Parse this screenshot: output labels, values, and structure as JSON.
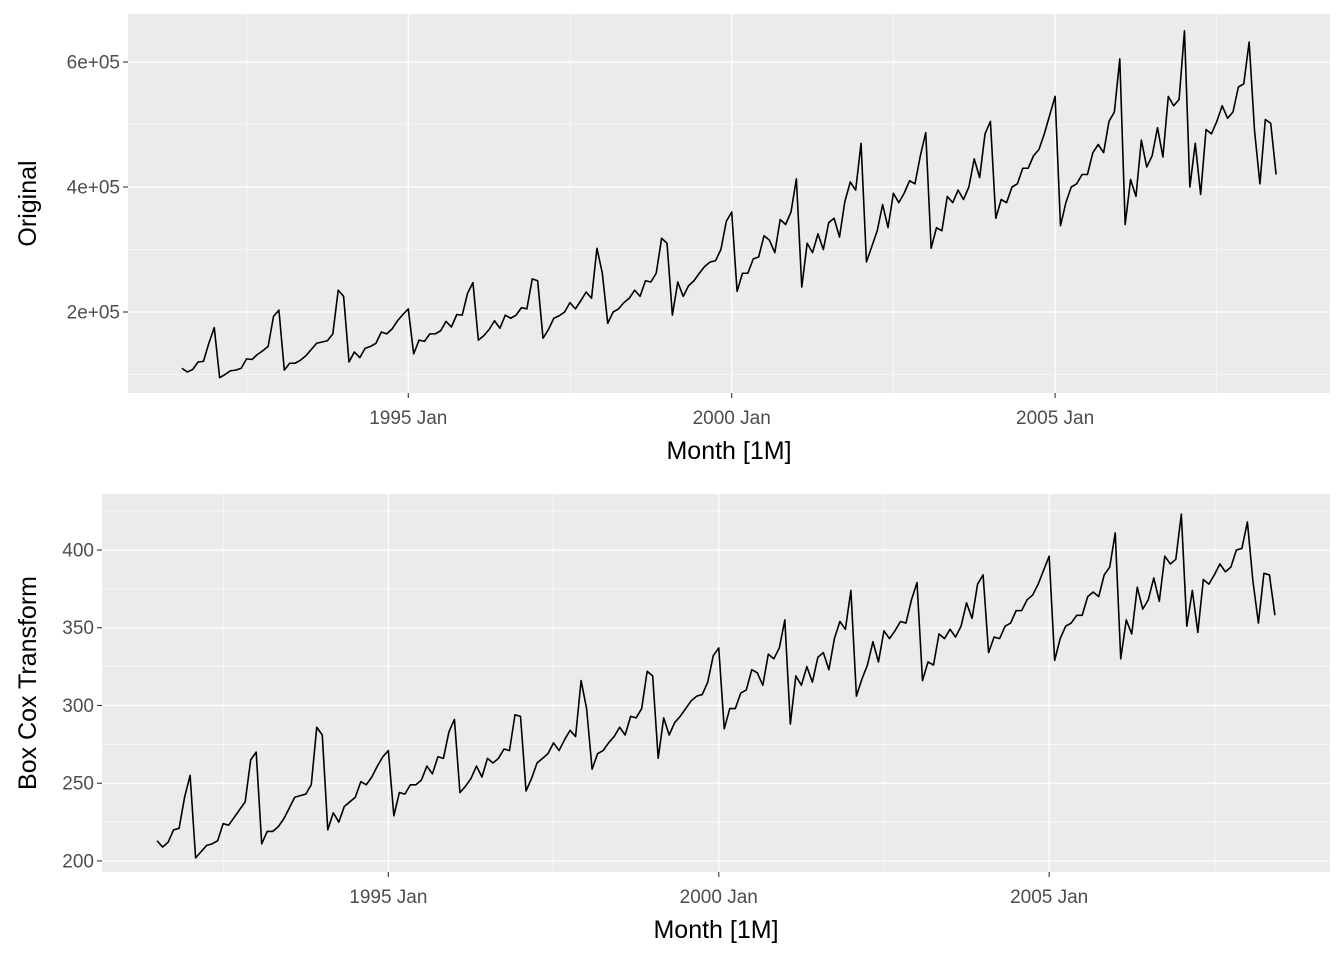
{
  "chart_data": [
    {
      "type": "line",
      "xlabel": "Month [1M]",
      "ylabel": "Original",
      "x": [
        "1991-07",
        "1991-08",
        "1991-09",
        "1991-10",
        "1991-11",
        "1991-12",
        "1992-01",
        "1992-02",
        "1992-03",
        "1992-04",
        "1992-05",
        "1992-06",
        "1992-07",
        "1992-08",
        "1992-09",
        "1992-10",
        "1992-11",
        "1992-12",
        "1993-01",
        "1993-02",
        "1993-03",
        "1993-04",
        "1993-05",
        "1993-06",
        "1993-07",
        "1993-08",
        "1993-09",
        "1993-10",
        "1993-11",
        "1993-12",
        "1994-01",
        "1994-02",
        "1994-03",
        "1994-04",
        "1994-05",
        "1994-06",
        "1994-07",
        "1994-08",
        "1994-09",
        "1994-10",
        "1994-11",
        "1994-12",
        "1995-01",
        "1995-02",
        "1995-03",
        "1995-04",
        "1995-05",
        "1995-06",
        "1995-07",
        "1995-08",
        "1995-09",
        "1995-10",
        "1995-11",
        "1995-12",
        "1996-01",
        "1996-02",
        "1996-03",
        "1996-04",
        "1996-05",
        "1996-06",
        "1996-07",
        "1996-08",
        "1996-09",
        "1996-10",
        "1996-11",
        "1996-12",
        "1997-01",
        "1997-02",
        "1997-03",
        "1997-04",
        "1997-05",
        "1997-06",
        "1997-07",
        "1997-08",
        "1997-09",
        "1997-10",
        "1997-11",
        "1997-12",
        "1998-01",
        "1998-02",
        "1998-03",
        "1998-04",
        "1998-05",
        "1998-06",
        "1998-07",
        "1998-08",
        "1998-09",
        "1998-10",
        "1998-11",
        "1998-12",
        "1999-01",
        "1999-02",
        "1999-03",
        "1999-04",
        "1999-05",
        "1999-06",
        "1999-07",
        "1999-08",
        "1999-09",
        "1999-10",
        "1999-11",
        "1999-12",
        "2000-01",
        "2000-02",
        "2000-03",
        "2000-04",
        "2000-05",
        "2000-06",
        "2000-07",
        "2000-08",
        "2000-09",
        "2000-10",
        "2000-11",
        "2000-12",
        "2001-01",
        "2001-02",
        "2001-03",
        "2001-04",
        "2001-05",
        "2001-06",
        "2001-07",
        "2001-08",
        "2001-09",
        "2001-10",
        "2001-11",
        "2001-12",
        "2002-01",
        "2002-02",
        "2002-03",
        "2002-04",
        "2002-05",
        "2002-06",
        "2002-07",
        "2002-08",
        "2002-09",
        "2002-10",
        "2002-11",
        "2002-12",
        "2003-01",
        "2003-02",
        "2003-03",
        "2003-04",
        "2003-05",
        "2003-06",
        "2003-07",
        "2003-08",
        "2003-09",
        "2003-10",
        "2003-11",
        "2003-12",
        "2004-01",
        "2004-02",
        "2004-03",
        "2004-04",
        "2004-05",
        "2004-06",
        "2004-07",
        "2004-08",
        "2004-09",
        "2004-10",
        "2004-11",
        "2004-12",
        "2005-01",
        "2005-02",
        "2005-03",
        "2005-04",
        "2005-05",
        "2005-06",
        "2005-07",
        "2005-08",
        "2005-09",
        "2005-10",
        "2005-11",
        "2005-12",
        "2006-01",
        "2006-02",
        "2006-03",
        "2006-04",
        "2006-05",
        "2006-06",
        "2006-07",
        "2006-08",
        "2006-09",
        "2006-10",
        "2006-11",
        "2006-12",
        "2007-01",
        "2007-02",
        "2007-03",
        "2007-04",
        "2007-05",
        "2007-06",
        "2007-07",
        "2007-08",
        "2007-09",
        "2007-10",
        "2007-11",
        "2007-12",
        "2008-01",
        "2008-02",
        "2008-03",
        "2008-04",
        "2008-05",
        "2008-06"
      ],
      "values": [
        110000,
        104000,
        108000,
        120000,
        121000,
        150000,
        175000,
        95000,
        100000,
        106000,
        107000,
        110000,
        125000,
        124000,
        132000,
        138000,
        145000,
        193000,
        203000,
        107000,
        118000,
        118000,
        123000,
        130000,
        140000,
        150000,
        152000,
        154000,
        165000,
        235000,
        225000,
        120000,
        136000,
        127000,
        142000,
        145000,
        150000,
        168000,
        165000,
        173000,
        186000,
        196000,
        205000,
        133000,
        155000,
        153000,
        165000,
        165000,
        170000,
        185000,
        176000,
        196000,
        195000,
        230000,
        247000,
        155000,
        162000,
        172000,
        186000,
        174000,
        195000,
        190000,
        195000,
        207000,
        205000,
        253000,
        250000,
        158000,
        172000,
        190000,
        194000,
        200000,
        215000,
        205000,
        218000,
        232000,
        222000,
        302000,
        262000,
        182000,
        200000,
        205000,
        215000,
        222000,
        235000,
        225000,
        250000,
        248000,
        262000,
        318000,
        310000,
        195000,
        248000,
        225000,
        242000,
        250000,
        262000,
        273000,
        280000,
        282000,
        300000,
        345000,
        360000,
        233000,
        262000,
        262000,
        285000,
        288000,
        322000,
        315000,
        295000,
        348000,
        340000,
        360000,
        413000,
        240000,
        310000,
        295000,
        325000,
        300000,
        343000,
        350000,
        320000,
        377000,
        408000,
        395000,
        470000,
        280000,
        305000,
        330000,
        372000,
        335000,
        390000,
        375000,
        390000,
        410000,
        405000,
        450000,
        487000,
        302000,
        335000,
        330000,
        385000,
        375000,
        395000,
        380000,
        400000,
        445000,
        415000,
        485000,
        505000,
        350000,
        380000,
        375000,
        400000,
        405000,
        430000,
        430000,
        450000,
        460000,
        485000,
        515000,
        545000,
        338000,
        375000,
        400000,
        405000,
        420000,
        420000,
        455000,
        468000,
        455000,
        505000,
        520000,
        605000,
        340000,
        412000,
        385000,
        475000,
        432000,
        450000,
        495000,
        448000,
        545000,
        530000,
        540000,
        650000,
        400000,
        470000,
        388000,
        492000,
        485000,
        505000,
        530000,
        510000,
        520000,
        560000,
        565000,
        632000,
        490000,
        405000,
        508000,
        502000,
        420000
      ],
      "color": "#000000",
      "xlim": [
        "1990-09",
        "2009-04"
      ],
      "xticks": [
        {
          "value": "1995-01",
          "label": "1995 Jan"
        },
        {
          "value": "2000-01",
          "label": "2000 Jan"
        },
        {
          "value": "2005-01",
          "label": "2005 Jan"
        }
      ],
      "xminorticks": [
        "1992-07",
        "1997-07",
        "2002-07",
        "2007-07"
      ],
      "ylim": [
        70400,
        676800
      ],
      "yticks": [
        {
          "value": 200000,
          "label": "2e+05"
        },
        {
          "value": 400000,
          "label": "4e+05"
        },
        {
          "value": 600000,
          "label": "6e+05"
        }
      ],
      "yminorticks": [
        100000,
        300000,
        500000
      ],
      "grid": true
    },
    {
      "type": "line",
      "xlabel": "Month [1M]",
      "ylabel": "Box Cox Transform",
      "x": [
        "1991-07",
        "1991-08",
        "1991-09",
        "1991-10",
        "1991-11",
        "1991-12",
        "1992-01",
        "1992-02",
        "1992-03",
        "1992-04",
        "1992-05",
        "1992-06",
        "1992-07",
        "1992-08",
        "1992-09",
        "1992-10",
        "1992-11",
        "1992-12",
        "1993-01",
        "1993-02",
        "1993-03",
        "1993-04",
        "1993-05",
        "1993-06",
        "1993-07",
        "1993-08",
        "1993-09",
        "1993-10",
        "1993-11",
        "1993-12",
        "1994-01",
        "1994-02",
        "1994-03",
        "1994-04",
        "1994-05",
        "1994-06",
        "1994-07",
        "1994-08",
        "1994-09",
        "1994-10",
        "1994-11",
        "1994-12",
        "1995-01",
        "1995-02",
        "1995-03",
        "1995-04",
        "1995-05",
        "1995-06",
        "1995-07",
        "1995-08",
        "1995-09",
        "1995-10",
        "1995-11",
        "1995-12",
        "1996-01",
        "1996-02",
        "1996-03",
        "1996-04",
        "1996-05",
        "1996-06",
        "1996-07",
        "1996-08",
        "1996-09",
        "1996-10",
        "1996-11",
        "1996-12",
        "1997-01",
        "1997-02",
        "1997-03",
        "1997-04",
        "1997-05",
        "1997-06",
        "1997-07",
        "1997-08",
        "1997-09",
        "1997-10",
        "1997-11",
        "1997-12",
        "1998-01",
        "1998-02",
        "1998-03",
        "1998-04",
        "1998-05",
        "1998-06",
        "1998-07",
        "1998-08",
        "1998-09",
        "1998-10",
        "1998-11",
        "1998-12",
        "1999-01",
        "1999-02",
        "1999-03",
        "1999-04",
        "1999-05",
        "1999-06",
        "1999-07",
        "1999-08",
        "1999-09",
        "1999-10",
        "1999-11",
        "1999-12",
        "2000-01",
        "2000-02",
        "2000-03",
        "2000-04",
        "2000-05",
        "2000-06",
        "2000-07",
        "2000-08",
        "2000-09",
        "2000-10",
        "2000-11",
        "2000-12",
        "2001-01",
        "2001-02",
        "2001-03",
        "2001-04",
        "2001-05",
        "2001-06",
        "2001-07",
        "2001-08",
        "2001-09",
        "2001-10",
        "2001-11",
        "2001-12",
        "2002-01",
        "2002-02",
        "2002-03",
        "2002-04",
        "2002-05",
        "2002-06",
        "2002-07",
        "2002-08",
        "2002-09",
        "2002-10",
        "2002-11",
        "2002-12",
        "2003-01",
        "2003-02",
        "2003-03",
        "2003-04",
        "2003-05",
        "2003-06",
        "2003-07",
        "2003-08",
        "2003-09",
        "2003-10",
        "2003-11",
        "2003-12",
        "2004-01",
        "2004-02",
        "2004-03",
        "2004-04",
        "2004-05",
        "2004-06",
        "2004-07",
        "2004-08",
        "2004-09",
        "2004-10",
        "2004-11",
        "2004-12",
        "2005-01",
        "2005-02",
        "2005-03",
        "2005-04",
        "2005-05",
        "2005-06",
        "2005-07",
        "2005-08",
        "2005-09",
        "2005-10",
        "2005-11",
        "2005-12",
        "2006-01",
        "2006-02",
        "2006-03",
        "2006-04",
        "2006-05",
        "2006-06",
        "2006-07",
        "2006-08",
        "2006-09",
        "2006-10",
        "2006-11",
        "2006-12",
        "2007-01",
        "2007-02",
        "2007-03",
        "2007-04",
        "2007-05",
        "2007-06",
        "2007-07",
        "2007-08",
        "2007-09",
        "2007-10",
        "2007-11",
        "2007-12",
        "2008-01",
        "2008-02",
        "2008-03",
        "2008-04",
        "2008-05",
        "2008-06"
      ],
      "values": [
        213,
        209,
        212,
        220,
        221,
        241,
        255,
        202,
        206,
        210,
        211,
        213,
        224,
        223,
        228,
        233,
        238,
        265,
        270,
        211,
        219,
        219,
        222,
        227,
        234,
        241,
        242,
        243,
        249,
        286,
        281,
        220,
        231,
        225,
        235,
        238,
        241,
        251,
        249,
        254,
        261,
        267,
        271,
        229,
        244,
        243,
        249,
        249,
        252,
        261,
        256,
        267,
        266,
        283,
        291,
        244,
        248,
        253,
        261,
        254,
        266,
        263,
        266,
        272,
        271,
        294,
        293,
        245,
        253,
        263,
        266,
        269,
        276,
        271,
        278,
        284,
        280,
        316,
        298,
        259,
        269,
        271,
        276,
        280,
        286,
        281,
        293,
        292,
        298,
        322,
        319,
        266,
        292,
        281,
        289,
        293,
        298,
        303,
        306,
        307,
        315,
        332,
        337,
        285,
        298,
        298,
        308,
        310,
        323,
        321,
        313,
        333,
        330,
        337,
        355,
        288,
        319,
        313,
        325,
        315,
        331,
        334,
        323,
        343,
        354,
        349,
        374,
        306,
        317,
        326,
        341,
        328,
        348,
        343,
        348,
        354,
        353,
        368,
        379,
        316,
        328,
        326,
        346,
        343,
        349,
        344,
        351,
        366,
        356,
        378,
        384,
        334,
        344,
        343,
        351,
        353,
        361,
        361,
        368,
        371,
        378,
        387,
        396,
        329,
        343,
        351,
        353,
        358,
        358,
        370,
        373,
        370,
        384,
        389,
        411,
        330,
        355,
        346,
        376,
        362,
        368,
        382,
        367,
        396,
        391,
        394,
        423,
        351,
        374,
        347,
        381,
        378,
        384,
        391,
        386,
        389,
        400,
        401,
        418,
        380,
        353,
        385,
        384,
        358
      ],
      "color": "#000000",
      "xlim": [
        "1990-09",
        "2009-04"
      ],
      "xticks": [
        {
          "value": "1995-01",
          "label": "1995 Jan"
        },
        {
          "value": "2000-01",
          "label": "2000 Jan"
        },
        {
          "value": "2005-01",
          "label": "2005 Jan"
        }
      ],
      "xminorticks": [
        "1992-07",
        "1997-07",
        "2002-07",
        "2007-07"
      ],
      "ylim": [
        192.9,
        436
      ],
      "yticks": [
        200,
        250,
        300,
        350,
        400
      ],
      "yminorticks": [
        225,
        275,
        325,
        375,
        425
      ],
      "grid": true
    }
  ]
}
